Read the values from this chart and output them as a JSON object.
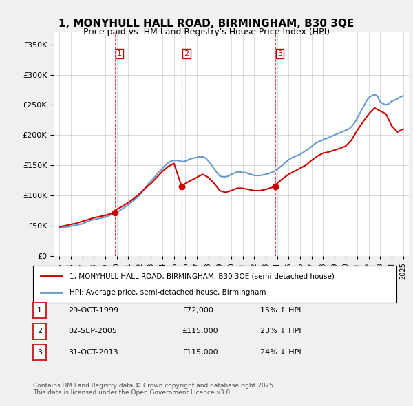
{
  "title": "1, MONYHULL HALL ROAD, BIRMINGHAM, B30 3QE",
  "subtitle": "Price paid vs. HM Land Registry's House Price Index (HPI)",
  "ylabel": "",
  "ylim": [
    0,
    370000
  ],
  "yticks": [
    0,
    50000,
    100000,
    150000,
    200000,
    250000,
    300000,
    350000
  ],
  "ytick_labels": [
    "£0",
    "£50K",
    "£100K",
    "£150K",
    "£200K",
    "£250K",
    "£300K",
    "£350K"
  ],
  "background_color": "#f0f0f0",
  "plot_bg_color": "#ffffff",
  "red_color": "#cc0000",
  "blue_color": "#6699cc",
  "sale_dates": [
    1999.83,
    2005.67,
    2013.83
  ],
  "sale_prices": [
    72000,
    115000,
    115000
  ],
  "sale_labels": [
    "1",
    "2",
    "3"
  ],
  "legend_line1": "1, MONYHULL HALL ROAD, BIRMINGHAM, B30 3QE (semi-detached house)",
  "legend_line2": "HPI: Average price, semi-detached house, Birmingham",
  "table_data": [
    [
      "1",
      "29-OCT-1999",
      "£72,000",
      "15% ↑ HPI"
    ],
    [
      "2",
      "02-SEP-2005",
      "£115,000",
      "23% ↓ HPI"
    ],
    [
      "3",
      "31-OCT-2013",
      "£115,000",
      "24% ↓ HPI"
    ]
  ],
  "footer": "Contains HM Land Registry data © Crown copyright and database right 2025.\nThis data is licensed under the Open Government Licence v3.0.",
  "hpi_years": [
    1995,
    1995.25,
    1995.5,
    1995.75,
    1996,
    1996.25,
    1996.5,
    1996.75,
    1997,
    1997.25,
    1997.5,
    1997.75,
    1998,
    1998.25,
    1998.5,
    1998.75,
    1999,
    1999.25,
    1999.5,
    1999.75,
    2000,
    2000.25,
    2000.5,
    2000.75,
    2001,
    2001.25,
    2001.5,
    2001.75,
    2002,
    2002.25,
    2002.5,
    2002.75,
    2003,
    2003.25,
    2003.5,
    2003.75,
    2004,
    2004.25,
    2004.5,
    2004.75,
    2005,
    2005.25,
    2005.5,
    2005.75,
    2006,
    2006.25,
    2006.5,
    2006.75,
    2007,
    2007.25,
    2007.5,
    2007.75,
    2008,
    2008.25,
    2008.5,
    2008.75,
    2009,
    2009.25,
    2009.5,
    2009.75,
    2010,
    2010.25,
    2010.5,
    2010.75,
    2011,
    2011.25,
    2011.5,
    2011.75,
    2012,
    2012.25,
    2012.5,
    2012.75,
    2013,
    2013.25,
    2013.5,
    2013.75,
    2014,
    2014.25,
    2014.5,
    2014.75,
    2015,
    2015.25,
    2015.5,
    2015.75,
    2016,
    2016.25,
    2016.5,
    2016.75,
    2017,
    2017.25,
    2017.5,
    2017.75,
    2018,
    2018.25,
    2018.5,
    2018.75,
    2019,
    2019.25,
    2019.5,
    2019.75,
    2020,
    2020.25,
    2020.5,
    2020.75,
    2021,
    2021.25,
    2021.5,
    2021.75,
    2022,
    2022.25,
    2022.5,
    2022.75,
    2023,
    2023.25,
    2023.5,
    2023.75,
    2024,
    2024.25,
    2024.5,
    2024.75,
    2025
  ],
  "hpi_values": [
    46000,
    47000,
    47500,
    48000,
    49000,
    50000,
    51000,
    52000,
    53000,
    55000,
    57000,
    59000,
    60000,
    61000,
    62000,
    63000,
    64000,
    66000,
    68000,
    70000,
    72000,
    75000,
    78000,
    81000,
    84000,
    88000,
    92000,
    96000,
    100000,
    107000,
    113000,
    119000,
    124000,
    129000,
    135000,
    140000,
    145000,
    150000,
    154000,
    157000,
    158000,
    158000,
    157000,
    156000,
    157000,
    159000,
    161000,
    162000,
    163000,
    164000,
    164000,
    162000,
    157000,
    151000,
    144000,
    138000,
    132000,
    131000,
    131000,
    132000,
    135000,
    137000,
    139000,
    139000,
    138000,
    138000,
    136000,
    135000,
    133000,
    133000,
    133000,
    134000,
    135000,
    136000,
    138000,
    140000,
    143000,
    147000,
    151000,
    155000,
    159000,
    162000,
    164000,
    166000,
    168000,
    171000,
    174000,
    177000,
    181000,
    185000,
    188000,
    190000,
    192000,
    194000,
    196000,
    198000,
    200000,
    202000,
    204000,
    206000,
    208000,
    210000,
    214000,
    220000,
    228000,
    237000,
    246000,
    255000,
    262000,
    265000,
    267000,
    265000,
    255000,
    252000,
    250000,
    252000,
    256000,
    258000,
    260000,
    263000,
    265000
  ],
  "red_years": [
    1995,
    1995.5,
    1996,
    1996.5,
    1997,
    1997.5,
    1998,
    1998.5,
    1999,
    1999.83,
    2000,
    2000.5,
    2001,
    2001.5,
    2002,
    2002.5,
    2003,
    2003.5,
    2004,
    2004.5,
    2005,
    2005.67,
    2006,
    2006.5,
    2007,
    2007.5,
    2008,
    2008.5,
    2009,
    2009.5,
    2010,
    2010.5,
    2011,
    2011.5,
    2012,
    2012.5,
    2013,
    2013.83,
    2014,
    2014.5,
    2015,
    2015.5,
    2016,
    2016.5,
    2017,
    2017.5,
    2018,
    2018.5,
    2019,
    2019.5,
    2020,
    2020.5,
    2021,
    2021.5,
    2022,
    2022.5,
    2023,
    2023.5,
    2024,
    2024.5,
    2025
  ],
  "red_values": [
    48000,
    50000,
    52000,
    54000,
    57000,
    60000,
    63000,
    65000,
    67000,
    72000,
    77000,
    82000,
    88000,
    95000,
    103000,
    112000,
    120000,
    130000,
    140000,
    148000,
    153000,
    115000,
    120000,
    125000,
    130000,
    135000,
    130000,
    120000,
    108000,
    105000,
    108000,
    112000,
    112000,
    110000,
    108000,
    108000,
    110000,
    115000,
    120000,
    128000,
    135000,
    140000,
    145000,
    150000,
    158000,
    165000,
    170000,
    172000,
    175000,
    178000,
    182000,
    192000,
    208000,
    222000,
    235000,
    245000,
    240000,
    235000,
    215000,
    205000,
    210000
  ]
}
